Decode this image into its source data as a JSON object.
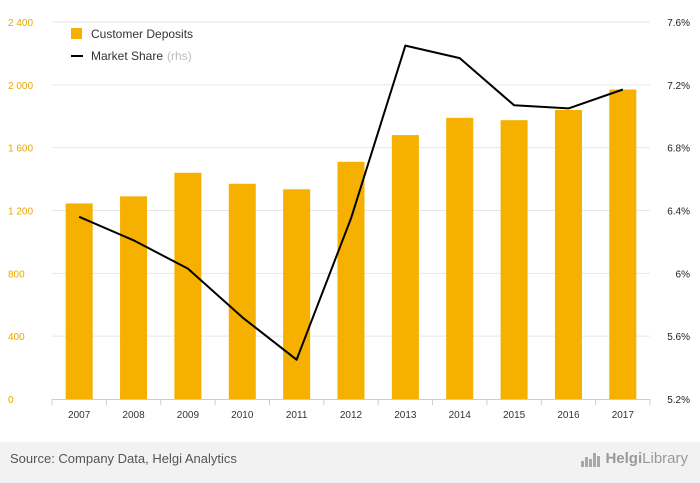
{
  "chart_data": {
    "type": "bar+line",
    "categories": [
      "2007",
      "2008",
      "2009",
      "2010",
      "2011",
      "2012",
      "2013",
      "2014",
      "2015",
      "2016",
      "2017"
    ],
    "series": [
      {
        "name": "Customer Deposits",
        "axis": "left",
        "type": "bar",
        "color": "#f5b000",
        "values": [
          1245,
          1290,
          1440,
          1370,
          1335,
          1510,
          1680,
          1790,
          1775,
          1840,
          1970
        ]
      },
      {
        "name": "Market Share",
        "axis": "right",
        "type": "line",
        "color": "#000000",
        "values": [
          6.36,
          6.21,
          6.03,
          5.72,
          5.45,
          6.35,
          7.45,
          7.37,
          7.07,
          7.05,
          7.17
        ]
      }
    ],
    "left_axis": {
      "ylim": [
        0,
        2400
      ],
      "ticks": [
        0,
        400,
        800,
        1200,
        1600,
        2000,
        2400
      ],
      "tick_labels": [
        "0",
        "400",
        "800",
        "1 200",
        "1 600",
        "2 000",
        "2 400"
      ]
    },
    "right_axis": {
      "ylim": [
        5.2,
        7.6
      ],
      "ticks": [
        5.2,
        5.6,
        6.0,
        6.4,
        6.8,
        7.2,
        7.6
      ],
      "tick_labels": [
        "5.2%",
        "5.6%",
        "6%",
        "6.4%",
        "6.8%",
        "7.2%",
        "7.6%"
      ]
    },
    "legend": {
      "position": "top-left",
      "items": [
        {
          "label": "Customer Deposits",
          "suffix": "",
          "marker": "square"
        },
        {
          "label": "Market Share",
          "suffix": "(rhs)",
          "marker": "line"
        }
      ]
    },
    "grid": true
  },
  "footer": {
    "source": "Source: Company Data, Helgi Analytics",
    "logo_a": "Helgi",
    "logo_b": "Library"
  }
}
